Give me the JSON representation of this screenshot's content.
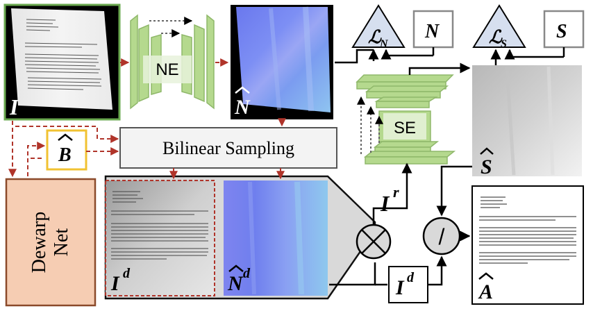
{
  "nodes": {
    "input": {
      "sym": "I"
    },
    "ne": {
      "label": "NE"
    },
    "normal_pred": {
      "sym": "N"
    },
    "loss_n": {
      "sym": "ℒ",
      "sub": "N"
    },
    "gt_normal": {
      "sym": "N"
    },
    "se": {
      "label": "SE"
    },
    "loss_s": {
      "sym": "ℒ",
      "sub": "S"
    },
    "gt_shading": {
      "sym": "S"
    },
    "shading_pred": {
      "sym": "S"
    },
    "bspline": {
      "sym": "B"
    },
    "bilinear": {
      "label": "Bilinear Sampling"
    },
    "dewarp": {
      "line1": "Dewarp",
      "line2": "Net"
    },
    "dewarped": {
      "sym": "I",
      "sup": "d"
    },
    "dewarped_normal": {
      "sym": "N",
      "sup": "d"
    },
    "residual": {
      "sym": "I",
      "sup": "r"
    },
    "multiply": {
      "op": "⊗"
    },
    "divide": {
      "op": "/"
    },
    "id_box": {
      "sym": "I",
      "sup": "d"
    },
    "albedo": {
      "sym": "A"
    }
  },
  "colors": {
    "arrow_red": "#b0342a",
    "arrow_black": "#000000",
    "input_border": "#6aa84f",
    "bspline_border": "#f1c232",
    "dewarp_fill": "#f6cdb3",
    "dewarp_border": "#8b4a2b",
    "loss_fill": "#d6dfef",
    "panel_fill": "#d9d9d9",
    "net_green": "#b5d98e",
    "normal_blue": "#7b8ff0"
  }
}
